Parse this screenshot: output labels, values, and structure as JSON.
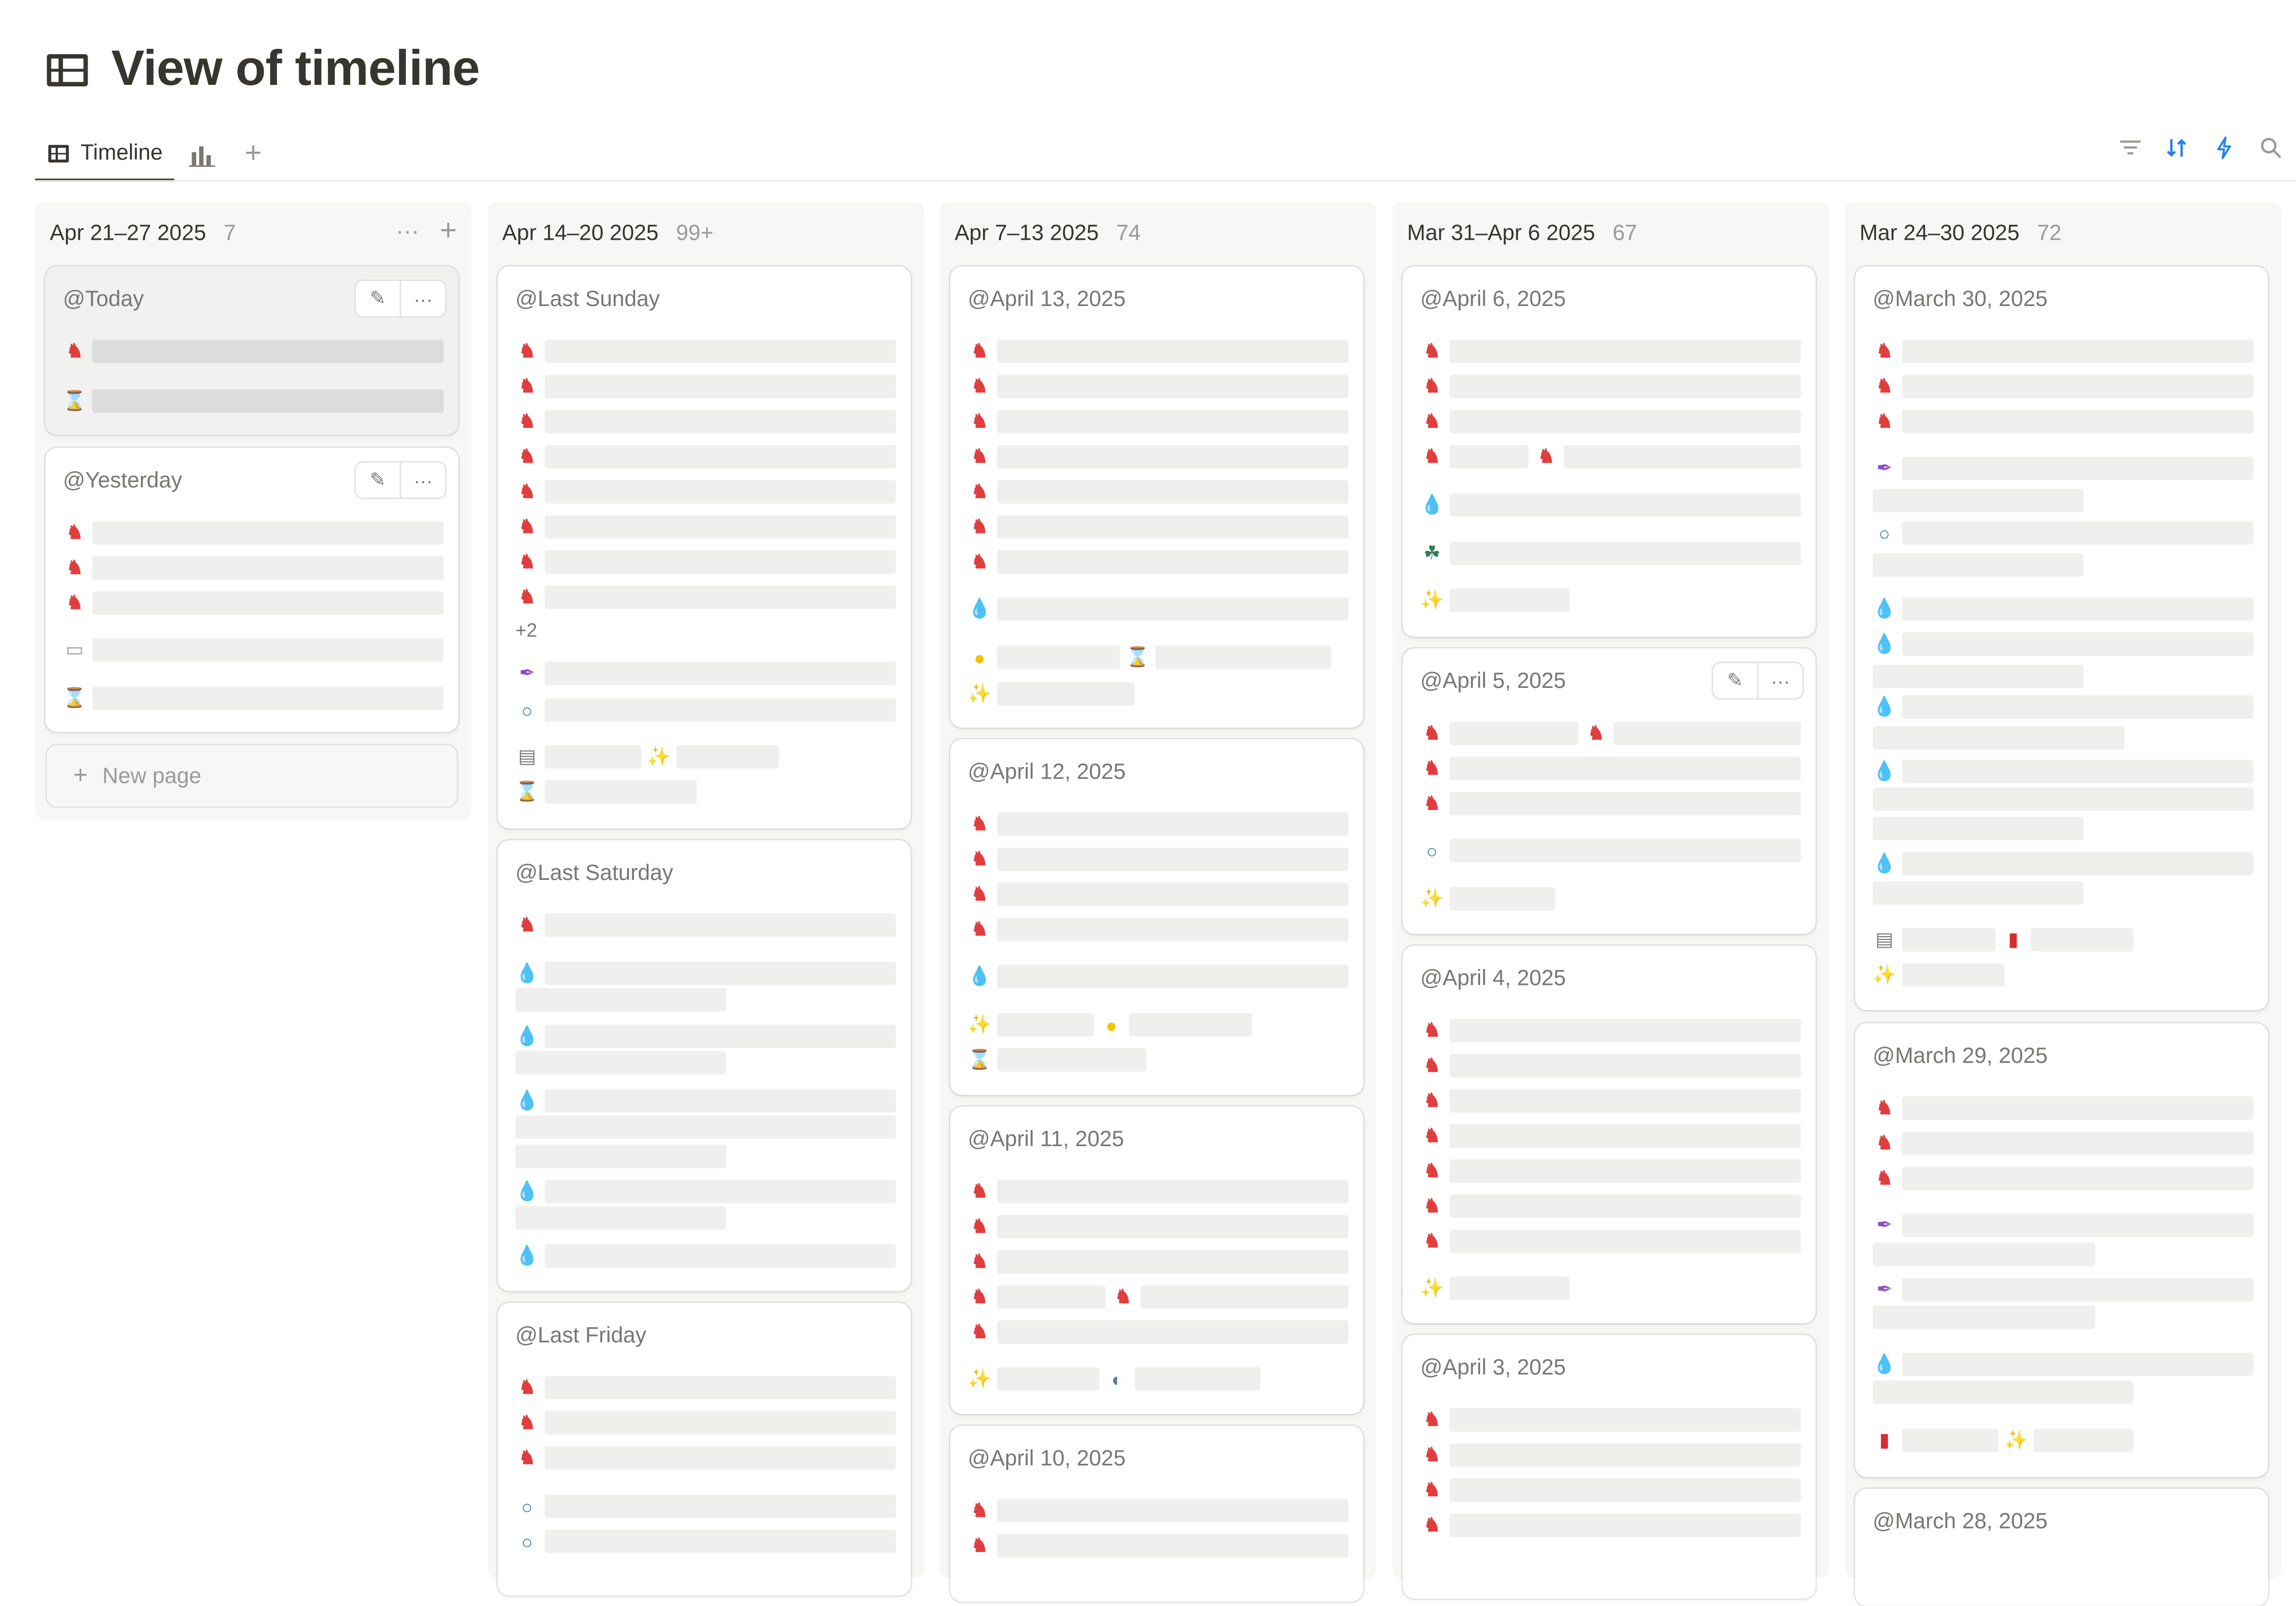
{
  "page": {
    "title": "View of timeline",
    "title_icon": "table-icon"
  },
  "tabs": {
    "active_label": "Timeline",
    "chart_icon": "bar-chart-icon",
    "add_symbol": "+"
  },
  "toolbar": {
    "icons": [
      "filter-icon",
      "sort-icon",
      "lightning-icon",
      "search-icon"
    ],
    "accent": "#2383e2"
  },
  "columns": [
    {
      "label": "Apr 21–27 2025",
      "count": "7",
      "cards": [
        {
          "title": "@Today"
        },
        {
          "title": "@Yesterday"
        }
      ],
      "new_page": "New page"
    },
    {
      "label": "Apr 14–20 2025",
      "count": "99+",
      "cards": [
        {
          "title": "@Last Sunday",
          "more": "+2"
        },
        {
          "title": "@Last Saturday"
        },
        {
          "title": "@Last Friday"
        }
      ]
    },
    {
      "label": "Apr 7–13 2025",
      "count": "74",
      "cards": [
        {
          "title": "@April 13, 2025"
        },
        {
          "title": "@April 12, 2025"
        },
        {
          "title": "@April 11, 2025"
        },
        {
          "title": "@April 10, 2025"
        }
      ]
    },
    {
      "label": "Mar 31–Apr 6 2025",
      "count": "67",
      "cards": [
        {
          "title": "@April 6, 2025"
        },
        {
          "title": "@April 5, 2025"
        },
        {
          "title": "@April 4, 2025"
        },
        {
          "title": "@April 3, 2025"
        }
      ]
    },
    {
      "label": "Mar 24–30 2025",
      "count": "72",
      "cards": [
        {
          "title": "@March 30, 2025"
        },
        {
          "title": "@March 29, 2025"
        },
        {
          "title": "@March 28, 2025"
        }
      ]
    }
  ],
  "icons": {
    "knight": "♞",
    "drop": "💧",
    "hourglass": "⌛",
    "sparkles": "✨",
    "quill": "✒",
    "ring": "○",
    "sun": "●",
    "clover": "☘",
    "book": "▮",
    "newspaper": "▤",
    "document": "▭",
    "fish": "◐",
    "edit": "✎",
    "dots": "···",
    "plus": "+"
  }
}
